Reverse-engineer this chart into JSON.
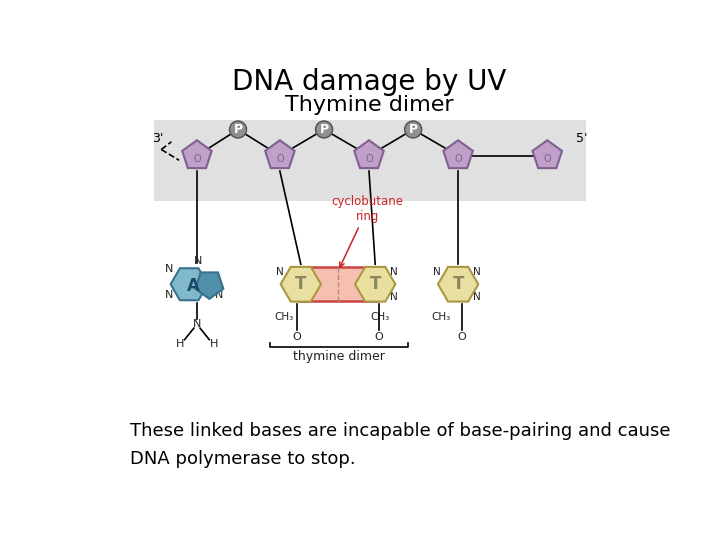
{
  "title": "DNA damage by UV",
  "subtitle": "Thymine dimer",
  "caption": "These linked bases are incapable of base-pairing and cause\nDNA polymerase to stop.",
  "title_fontsize": 20,
  "subtitle_fontsize": 16,
  "caption_fontsize": 13,
  "bg_color": "#ffffff",
  "panel_bg": "#e0e0e0",
  "purple_fill": "#c0a0c8",
  "purple_edge": "#806090",
  "blue_fill": "#80b8cc",
  "blue_fill2": "#5090a8",
  "blue_edge": "#3a7090",
  "thymine_fill": "#e8dfa0",
  "thymine_edge": "#a89840",
  "cyclo_fill": "#f5c0b0",
  "cyclo_edge": "#cc4444",
  "phos_fill": "#909090",
  "phos_edge": "#505050",
  "phos_text": "#ffffff",
  "red_label": "#cc2222",
  "dark_label": "#222222",
  "gray_label": "#555555"
}
